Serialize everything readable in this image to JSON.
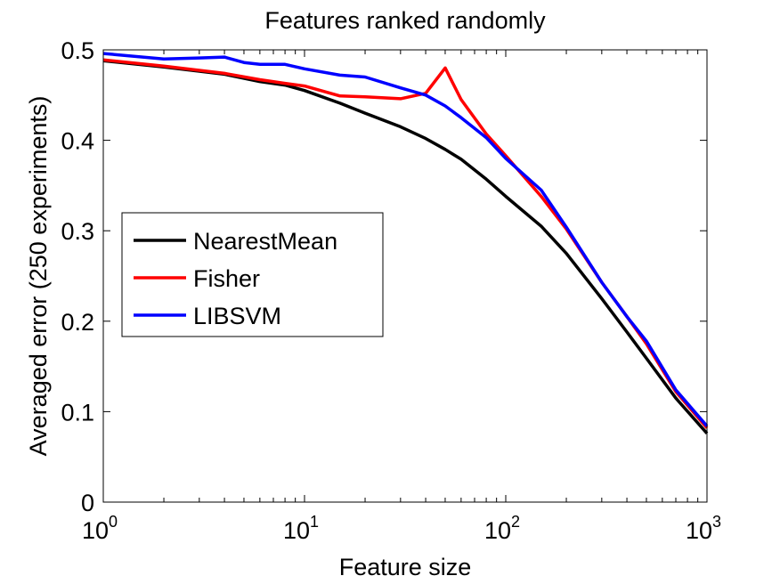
{
  "chart_data": {
    "type": "line",
    "title": "Features ranked randomly",
    "xlabel": "Feature size",
    "ylabel": "Averaged error (250 experiments)",
    "xscale": "log",
    "xlim": [
      1,
      1000
    ],
    "ylim": [
      0,
      0.5
    ],
    "grid": false,
    "legend_position": "center-left",
    "x_ticks": [
      {
        "base": "10",
        "exp": "0"
      },
      {
        "base": "10",
        "exp": "1"
      },
      {
        "base": "10",
        "exp": "2"
      },
      {
        "base": "10",
        "exp": "3"
      }
    ],
    "y_ticks": [
      "0",
      "0.1",
      "0.2",
      "0.3",
      "0.4",
      "0.5"
    ],
    "series": [
      {
        "name": "NearestMean",
        "color": "#000000",
        "points": [
          [
            1,
            0.488
          ],
          [
            2,
            0.481
          ],
          [
            4,
            0.473
          ],
          [
            6,
            0.465
          ],
          [
            8,
            0.461
          ],
          [
            10,
            0.455
          ],
          [
            15,
            0.441
          ],
          [
            20,
            0.43
          ],
          [
            30,
            0.415
          ],
          [
            40,
            0.402
          ],
          [
            50,
            0.39
          ],
          [
            60,
            0.379
          ],
          [
            80,
            0.357
          ],
          [
            100,
            0.338
          ],
          [
            150,
            0.305
          ],
          [
            200,
            0.275
          ],
          [
            300,
            0.225
          ],
          [
            400,
            0.188
          ],
          [
            500,
            0.159
          ],
          [
            700,
            0.115
          ],
          [
            1000,
            0.076
          ]
        ]
      },
      {
        "name": "Fisher",
        "color": "#ff0000",
        "points": [
          [
            1,
            0.489
          ],
          [
            2,
            0.482
          ],
          [
            4,
            0.474
          ],
          [
            6,
            0.467
          ],
          [
            8,
            0.463
          ],
          [
            10,
            0.46
          ],
          [
            15,
            0.449
          ],
          [
            20,
            0.448
          ],
          [
            30,
            0.446
          ],
          [
            40,
            0.452
          ],
          [
            50,
            0.48
          ],
          [
            60,
            0.445
          ],
          [
            80,
            0.407
          ],
          [
            100,
            0.383
          ],
          [
            150,
            0.338
          ],
          [
            200,
            0.302
          ],
          [
            300,
            0.243
          ],
          [
            400,
            0.205
          ],
          [
            500,
            0.175
          ],
          [
            700,
            0.122
          ],
          [
            1000,
            0.082
          ]
        ]
      },
      {
        "name": "LIBSVM",
        "color": "#0000ff",
        "points": [
          [
            1,
            0.496
          ],
          [
            2,
            0.49
          ],
          [
            3,
            0.491
          ],
          [
            4,
            0.492
          ],
          [
            5,
            0.486
          ],
          [
            6,
            0.484
          ],
          [
            8,
            0.484
          ],
          [
            10,
            0.479
          ],
          [
            15,
            0.472
          ],
          [
            20,
            0.47
          ],
          [
            30,
            0.458
          ],
          [
            40,
            0.45
          ],
          [
            50,
            0.438
          ],
          [
            60,
            0.425
          ],
          [
            80,
            0.403
          ],
          [
            100,
            0.38
          ],
          [
            150,
            0.345
          ],
          [
            200,
            0.304
          ],
          [
            300,
            0.243
          ],
          [
            400,
            0.205
          ],
          [
            500,
            0.178
          ],
          [
            700,
            0.124
          ],
          [
            1000,
            0.084
          ]
        ]
      }
    ]
  }
}
